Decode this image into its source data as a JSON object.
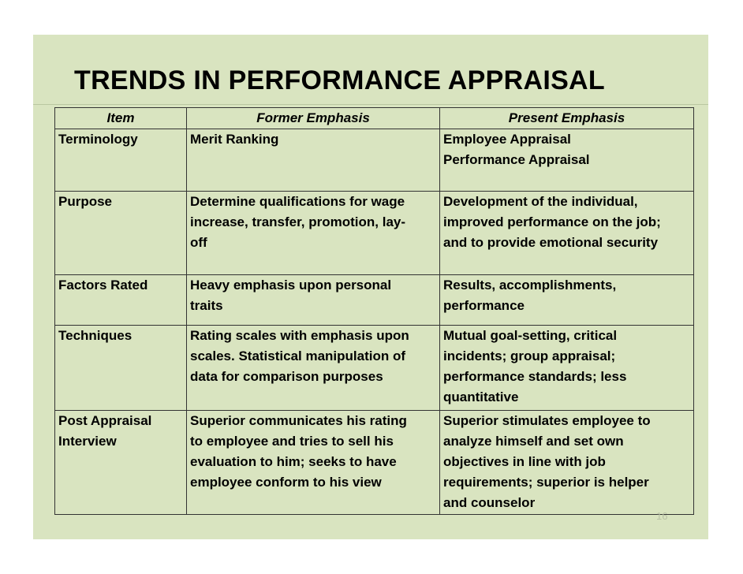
{
  "slide": {
    "title": "TRENDS IN PERFORMANCE APPRAISAL",
    "page_number": "16",
    "background_color": "#d9e4c0"
  },
  "table": {
    "headers": [
      "Item",
      "Former Emphasis",
      "Present Emphasis"
    ],
    "rows": [
      {
        "item": [
          "Terminology"
        ],
        "former": [
          "Merit Ranking"
        ],
        "present": [
          "Employee Appraisal",
          "Performance Appraisal"
        ]
      },
      {
        "item": [
          "Purpose"
        ],
        "former": [
          "Determine qualifications for wage",
          "increase, transfer, promotion, lay-",
          "off"
        ],
        "present": [
          "Development of the individual,",
          "improved performance on the job;",
          "and to provide emotional security"
        ]
      },
      {
        "item": [
          "Factors Rated"
        ],
        "former": [
          "Heavy emphasis upon personal",
          "traits"
        ],
        "present": [
          "Results, accomplishments,",
          "performance"
        ]
      },
      {
        "item": [
          "Techniques"
        ],
        "former": [
          "Rating scales with emphasis upon",
          "scales. Statistical manipulation of",
          "data for comparison purposes"
        ],
        "present": [
          "Mutual goal-setting, critical",
          "incidents; group appraisal;",
          "performance standards; less",
          "quantitative"
        ]
      },
      {
        "item": [
          "Post Appraisal",
          "Interview"
        ],
        "former": [
          "Superior communicates his rating",
          "to employee and tries to sell his",
          "evaluation to him; seeks to have",
          "employee conform to his view"
        ],
        "present": [
          "Superior stimulates employee to",
          "analyze himself and set own",
          "objectives in line with job",
          "requirements; superior is helper",
          "and counselor"
        ]
      }
    ]
  }
}
